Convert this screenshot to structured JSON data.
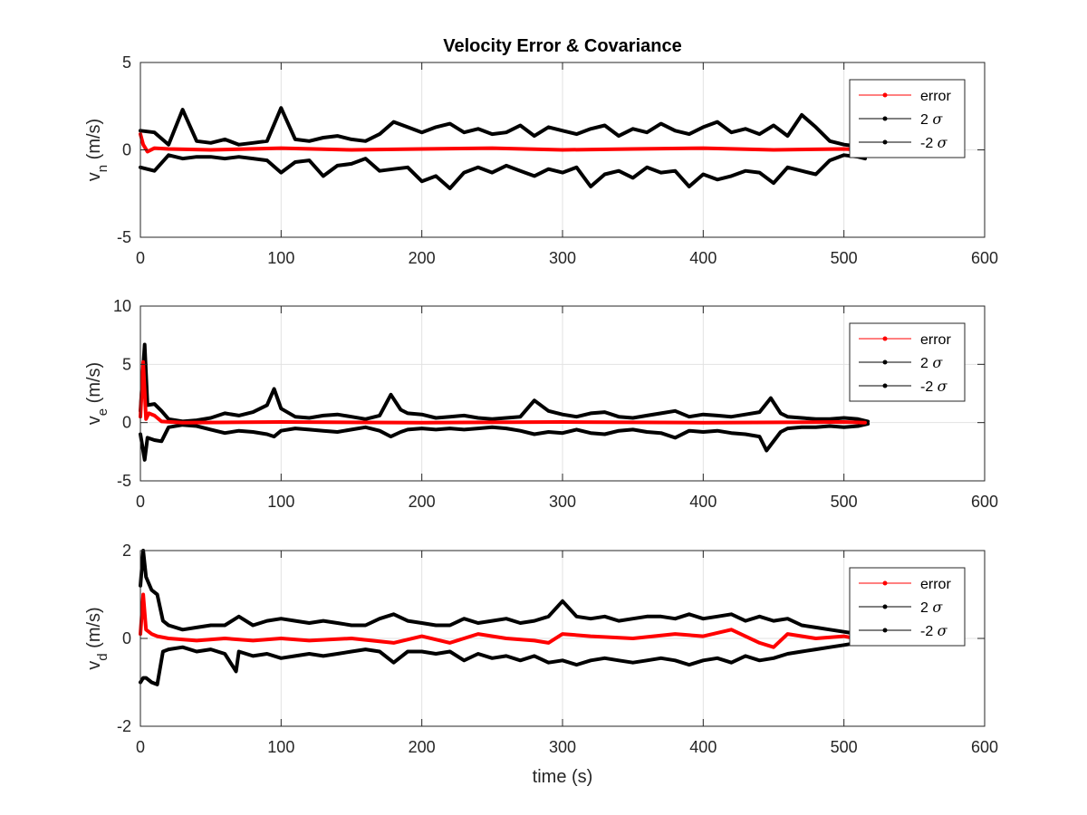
{
  "chart_data": [
    {
      "type": "line",
      "title": "Velocity Error & Covariance",
      "ylabel_main": "v",
      "ylabel_sub": "n",
      "ylabel_unit": " (m/s)",
      "xlabel": "",
      "xlim": [
        0,
        600
      ],
      "ylim": [
        -5,
        5
      ],
      "xticks": [
        0,
        100,
        200,
        300,
        400,
        500,
        600
      ],
      "yticks": [
        -5,
        0,
        5
      ],
      "grid": true,
      "legend_position": "top-right",
      "legend": [
        {
          "label": "error",
          "sigma": false,
          "color": "#ff0000"
        },
        {
          "label": "2 ",
          "sigma": true,
          "color": "#000000"
        },
        {
          "label": "-2 ",
          "sigma": true,
          "color": "#000000"
        }
      ],
      "series": [
        {
          "name": "error",
          "color": "#ff0000",
          "x": [
            0,
            2,
            5,
            10,
            20,
            50,
            100,
            150,
            200,
            250,
            300,
            350,
            400,
            450,
            500,
            515
          ],
          "y": [
            0.9,
            0.3,
            -0.1,
            0.1,
            0.05,
            0,
            0.1,
            0,
            0.05,
            0.1,
            0,
            0.05,
            0.1,
            0,
            0.05,
            0
          ]
        },
        {
          "name": "2 σ",
          "color": "#000000",
          "x": [
            0,
            10,
            20,
            30,
            40,
            50,
            60,
            70,
            80,
            90,
            100,
            110,
            120,
            130,
            140,
            150,
            160,
            170,
            180,
            190,
            200,
            210,
            220,
            230,
            240,
            250,
            260,
            270,
            280,
            290,
            300,
            310,
            320,
            330,
            340,
            350,
            360,
            370,
            380,
            390,
            400,
            410,
            420,
            430,
            440,
            450,
            460,
            470,
            480,
            490,
            500,
            510,
            515
          ],
          "y": [
            1.1,
            1.0,
            0.3,
            2.3,
            0.5,
            0.4,
            0.6,
            0.3,
            0.4,
            0.5,
            2.4,
            0.6,
            0.5,
            0.7,
            0.8,
            0.6,
            0.5,
            0.9,
            1.6,
            1.3,
            1.0,
            1.3,
            1.5,
            1.0,
            1.2,
            0.9,
            1.0,
            1.4,
            0.8,
            1.3,
            1.1,
            0.9,
            1.2,
            1.4,
            0.8,
            1.2,
            1.0,
            1.5,
            1.1,
            0.9,
            1.3,
            1.6,
            1.0,
            1.2,
            0.9,
            1.4,
            0.8,
            2.0,
            1.3,
            0.5,
            0.3,
            0.2,
            0.1
          ]
        },
        {
          "name": "-2 σ",
          "color": "#000000",
          "x": [
            0,
            10,
            20,
            30,
            40,
            50,
            60,
            70,
            80,
            90,
            100,
            110,
            120,
            130,
            140,
            150,
            160,
            170,
            180,
            190,
            200,
            210,
            220,
            230,
            240,
            250,
            260,
            270,
            280,
            290,
            300,
            310,
            320,
            330,
            340,
            350,
            360,
            370,
            380,
            390,
            400,
            410,
            420,
            430,
            440,
            450,
            460,
            470,
            480,
            490,
            500,
            510,
            515
          ],
          "y": [
            -1.0,
            -1.2,
            -0.3,
            -0.5,
            -0.4,
            -0.4,
            -0.5,
            -0.4,
            -0.5,
            -0.6,
            -1.3,
            -0.7,
            -0.6,
            -1.5,
            -0.9,
            -0.8,
            -0.5,
            -1.2,
            -1.1,
            -1.0,
            -1.8,
            -1.5,
            -2.2,
            -1.3,
            -1.0,
            -1.3,
            -0.9,
            -1.2,
            -1.5,
            -1.1,
            -1.3,
            -1.0,
            -2.1,
            -1.4,
            -1.2,
            -1.6,
            -1.0,
            -1.3,
            -1.2,
            -2.1,
            -1.4,
            -1.7,
            -1.5,
            -1.2,
            -1.3,
            -1.9,
            -1.0,
            -1.2,
            -1.4,
            -0.6,
            -0.3,
            -0.4,
            -0.5
          ]
        }
      ]
    },
    {
      "type": "line",
      "title": "",
      "ylabel_main": "v",
      "ylabel_sub": "e",
      "ylabel_unit": " (m/s)",
      "xlabel": "",
      "xlim": [
        0,
        600
      ],
      "ylim": [
        -5,
        10
      ],
      "xticks": [
        0,
        100,
        200,
        300,
        400,
        500,
        600
      ],
      "yticks": [
        -5,
        0,
        5,
        10
      ],
      "grid": true,
      "legend_position": "top-right",
      "legend": [
        {
          "label": "error",
          "sigma": false,
          "color": "#ff0000"
        },
        {
          "label": "2 ",
          "sigma": true,
          "color": "#000000"
        },
        {
          "label": "-2 ",
          "sigma": true,
          "color": "#000000"
        }
      ],
      "series": [
        {
          "name": "error",
          "color": "#ff0000",
          "x": [
            0,
            2,
            4,
            6,
            10,
            15,
            30,
            100,
            200,
            300,
            400,
            500,
            515
          ],
          "y": [
            0.5,
            5.2,
            0.3,
            0.8,
            0.6,
            0.1,
            0,
            0.05,
            0,
            0.05,
            0,
            0.05,
            0
          ]
        },
        {
          "name": "2 σ",
          "color": "#000000",
          "x": [
            0,
            3,
            5,
            10,
            15,
            20,
            30,
            40,
            50,
            60,
            70,
            80,
            90,
            95,
            100,
            110,
            120,
            130,
            140,
            150,
            160,
            170,
            178,
            185,
            190,
            200,
            210,
            220,
            230,
            240,
            250,
            260,
            270,
            280,
            290,
            300,
            310,
            320,
            330,
            340,
            350,
            360,
            370,
            380,
            390,
            400,
            410,
            420,
            430,
            440,
            448,
            455,
            460,
            470,
            480,
            490,
            500,
            510,
            517
          ],
          "y": [
            1.0,
            6.7,
            1.5,
            1.6,
            1.0,
            0.3,
            0.1,
            0.2,
            0.4,
            0.8,
            0.6,
            0.9,
            1.5,
            2.9,
            1.2,
            0.5,
            0.4,
            0.6,
            0.7,
            0.5,
            0.3,
            0.6,
            2.4,
            1.1,
            0.8,
            0.7,
            0.4,
            0.5,
            0.6,
            0.4,
            0.3,
            0.4,
            0.5,
            1.9,
            1.0,
            0.7,
            0.5,
            0.8,
            0.9,
            0.5,
            0.4,
            0.6,
            0.8,
            1.0,
            0.5,
            0.7,
            0.6,
            0.5,
            0.7,
            0.9,
            2.1,
            0.8,
            0.5,
            0.4,
            0.3,
            0.3,
            0.4,
            0.3,
            0.1
          ]
        },
        {
          "name": "-2 σ",
          "color": "#000000",
          "x": [
            0,
            3,
            5,
            10,
            15,
            20,
            30,
            40,
            50,
            60,
            70,
            80,
            90,
            95,
            100,
            110,
            120,
            130,
            140,
            150,
            160,
            170,
            178,
            185,
            190,
            200,
            210,
            220,
            230,
            240,
            250,
            260,
            270,
            280,
            290,
            300,
            310,
            320,
            330,
            340,
            350,
            360,
            370,
            380,
            390,
            400,
            410,
            420,
            430,
            440,
            445,
            455,
            460,
            470,
            480,
            490,
            500,
            510,
            517
          ],
          "y": [
            -1.0,
            -3.2,
            -1.3,
            -1.5,
            -1.6,
            -0.4,
            -0.2,
            -0.3,
            -0.6,
            -0.9,
            -0.7,
            -0.8,
            -1.0,
            -1.2,
            -0.7,
            -0.5,
            -0.6,
            -0.7,
            -0.8,
            -0.6,
            -0.4,
            -0.7,
            -1.2,
            -0.8,
            -0.6,
            -0.5,
            -0.6,
            -0.5,
            -0.6,
            -0.5,
            -0.4,
            -0.5,
            -0.7,
            -1.0,
            -0.8,
            -0.9,
            -0.6,
            -0.9,
            -1.0,
            -0.7,
            -0.6,
            -0.8,
            -0.9,
            -1.3,
            -0.7,
            -0.8,
            -0.7,
            -0.9,
            -1.0,
            -1.2,
            -2.4,
            -0.8,
            -0.5,
            -0.4,
            -0.4,
            -0.3,
            -0.4,
            -0.3,
            -0.1
          ]
        }
      ]
    },
    {
      "type": "line",
      "title": "",
      "ylabel_main": "v",
      "ylabel_sub": "d",
      "ylabel_unit": " (m/s)",
      "xlabel": "time (s)",
      "xlim": [
        0,
        600
      ],
      "ylim": [
        -2,
        2
      ],
      "xticks": [
        0,
        100,
        200,
        300,
        400,
        500,
        600
      ],
      "yticks": [
        -2,
        0,
        2
      ],
      "grid": true,
      "legend_position": "top-right",
      "legend": [
        {
          "label": "error",
          "sigma": false,
          "color": "#ff0000"
        },
        {
          "label": "2 ",
          "sigma": true,
          "color": "#000000"
        },
        {
          "label": "-2 ",
          "sigma": true,
          "color": "#000000"
        }
      ],
      "series": [
        {
          "name": "error",
          "color": "#ff0000",
          "x": [
            0,
            2,
            4,
            8,
            12,
            20,
            40,
            60,
            80,
            100,
            120,
            150,
            180,
            200,
            220,
            240,
            260,
            280,
            290,
            300,
            320,
            350,
            380,
            400,
            420,
            440,
            450,
            460,
            480,
            500,
            515
          ],
          "y": [
            0.1,
            1.0,
            0.2,
            0.1,
            0.05,
            0.0,
            -0.05,
            0.0,
            -0.05,
            0.0,
            -0.05,
            0.0,
            -0.1,
            0.05,
            -0.1,
            0.1,
            0.0,
            -0.05,
            -0.1,
            0.1,
            0.05,
            0.0,
            0.1,
            0.05,
            0.2,
            -0.1,
            -0.2,
            0.1,
            0.0,
            0.05,
            -0.05
          ]
        },
        {
          "name": "2 σ",
          "color": "#000000",
          "x": [
            0,
            2,
            4,
            8,
            12,
            16,
            20,
            30,
            40,
            50,
            60,
            70,
            80,
            90,
            100,
            110,
            120,
            130,
            140,
            150,
            160,
            170,
            180,
            190,
            200,
            210,
            220,
            230,
            240,
            250,
            260,
            270,
            280,
            290,
            300,
            310,
            320,
            330,
            340,
            350,
            360,
            370,
            380,
            390,
            400,
            410,
            420,
            430,
            440,
            450,
            460,
            470,
            480,
            490,
            500,
            510,
            515
          ],
          "y": [
            1.2,
            2.0,
            1.4,
            1.1,
            1.0,
            0.4,
            0.3,
            0.2,
            0.25,
            0.3,
            0.3,
            0.5,
            0.3,
            0.4,
            0.45,
            0.4,
            0.35,
            0.4,
            0.35,
            0.3,
            0.3,
            0.45,
            0.55,
            0.4,
            0.35,
            0.3,
            0.3,
            0.45,
            0.35,
            0.4,
            0.45,
            0.35,
            0.4,
            0.5,
            0.85,
            0.5,
            0.45,
            0.5,
            0.4,
            0.45,
            0.5,
            0.5,
            0.45,
            0.55,
            0.45,
            0.5,
            0.55,
            0.4,
            0.5,
            0.4,
            0.45,
            0.3,
            0.25,
            0.2,
            0.15,
            0.1,
            0.05
          ]
        },
        {
          "name": "-2 σ",
          "color": "#000000",
          "x": [
            0,
            2,
            4,
            8,
            12,
            16,
            20,
            30,
            40,
            50,
            60,
            68,
            70,
            80,
            90,
            100,
            110,
            120,
            130,
            140,
            150,
            160,
            170,
            180,
            190,
            200,
            210,
            220,
            230,
            240,
            250,
            260,
            270,
            280,
            290,
            300,
            310,
            320,
            330,
            340,
            350,
            360,
            370,
            380,
            390,
            400,
            410,
            420,
            430,
            440,
            450,
            460,
            470,
            480,
            490,
            500,
            510,
            515
          ],
          "y": [
            -1.0,
            -0.9,
            -0.9,
            -1.0,
            -1.05,
            -0.3,
            -0.25,
            -0.2,
            -0.3,
            -0.25,
            -0.35,
            -0.75,
            -0.3,
            -0.4,
            -0.35,
            -0.45,
            -0.4,
            -0.35,
            -0.4,
            -0.35,
            -0.3,
            -0.25,
            -0.3,
            -0.55,
            -0.3,
            -0.3,
            -0.35,
            -0.3,
            -0.5,
            -0.35,
            -0.45,
            -0.4,
            -0.5,
            -0.4,
            -0.55,
            -0.5,
            -0.6,
            -0.5,
            -0.45,
            -0.5,
            -0.55,
            -0.5,
            -0.45,
            -0.5,
            -0.6,
            -0.5,
            -0.45,
            -0.55,
            -0.4,
            -0.5,
            -0.45,
            -0.35,
            -0.3,
            -0.25,
            -0.2,
            -0.15,
            -0.1,
            -0.05
          ]
        }
      ]
    }
  ]
}
